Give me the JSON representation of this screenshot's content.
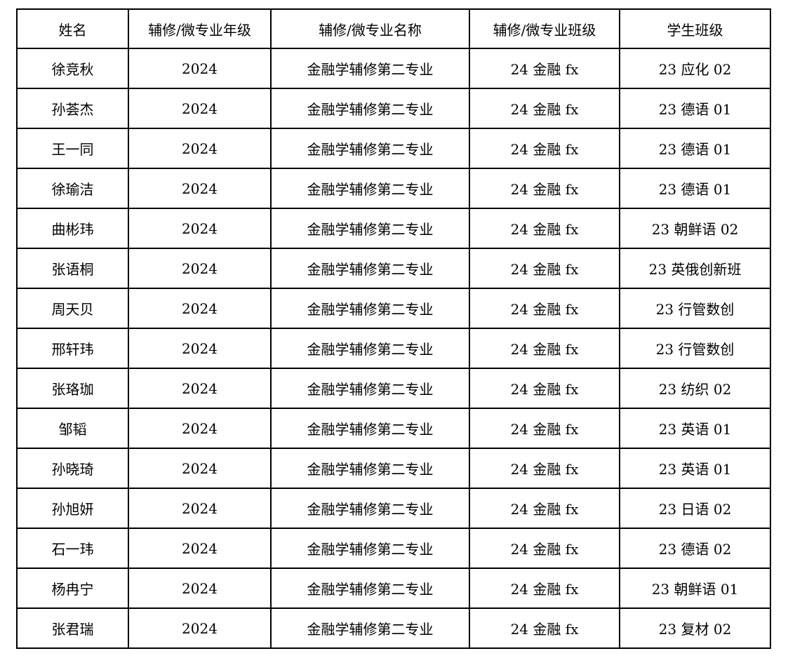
{
  "page": {
    "background_color": "#ffffff",
    "border_color": "#000000",
    "text_color": "#000000"
  },
  "table": {
    "columns": [
      {
        "key": "name",
        "label": "姓名"
      },
      {
        "key": "grade",
        "label": "辅修/微专业年级"
      },
      {
        "key": "program",
        "label": "辅修/微专业名称"
      },
      {
        "key": "minor_class",
        "label": "辅修/微专业班级"
      },
      {
        "key": "student_class",
        "label": "学生班级"
      }
    ],
    "rows": [
      {
        "name": "徐竞秋",
        "grade": "2024",
        "program": "金融学辅修第二专业",
        "minor_class": "24 金融 fx",
        "student_class": "23 应化 02"
      },
      {
        "name": "孙荟杰",
        "grade": "2024",
        "program": "金融学辅修第二专业",
        "minor_class": "24 金融 fx",
        "student_class": "23 德语 01"
      },
      {
        "name": "王一同",
        "grade": "2024",
        "program": "金融学辅修第二专业",
        "minor_class": "24 金融 fx",
        "student_class": "23 德语 01"
      },
      {
        "name": "徐瑜洁",
        "grade": "2024",
        "program": "金融学辅修第二专业",
        "minor_class": "24 金融 fx",
        "student_class": "23 德语 01"
      },
      {
        "name": "曲彬玮",
        "grade": "2024",
        "program": "金融学辅修第二专业",
        "minor_class": "24 金融 fx",
        "student_class": "23 朝鲜语 02"
      },
      {
        "name": "张语桐",
        "grade": "2024",
        "program": "金融学辅修第二专业",
        "minor_class": "24 金融 fx",
        "student_class": "23 英俄创新班"
      },
      {
        "name": "周天贝",
        "grade": "2024",
        "program": "金融学辅修第二专业",
        "minor_class": "24 金融 fx",
        "student_class": "23 行管数创"
      },
      {
        "name": "邢轩玮",
        "grade": "2024",
        "program": "金融学辅修第二专业",
        "minor_class": "24 金融 fx",
        "student_class": "23 行管数创"
      },
      {
        "name": "张珞珈",
        "grade": "2024",
        "program": "金融学辅修第二专业",
        "minor_class": "24 金融 fx",
        "student_class": "23 纺织 02"
      },
      {
        "name": "邹韬",
        "grade": "2024",
        "program": "金融学辅修第二专业",
        "minor_class": "24 金融 fx",
        "student_class": "23 英语 01"
      },
      {
        "name": "孙晓琦",
        "grade": "2024",
        "program": "金融学辅修第二专业",
        "minor_class": "24 金融 fx",
        "student_class": "23 英语 01"
      },
      {
        "name": "孙旭妍",
        "grade": "2024",
        "program": "金融学辅修第二专业",
        "minor_class": "24 金融 fx",
        "student_class": "23 日语 02"
      },
      {
        "name": "石一玮",
        "grade": "2024",
        "program": "金融学辅修第二专业",
        "minor_class": "24 金融 fx",
        "student_class": "23 德语 02"
      },
      {
        "name": "杨冉宁",
        "grade": "2024",
        "program": "金融学辅修第二专业",
        "minor_class": "24 金融 fx",
        "student_class": "23 朝鲜语 01"
      },
      {
        "name": "张君瑞",
        "grade": "2024",
        "program": "金融学辅修第二专业",
        "minor_class": "24 金融 fx",
        "student_class": "23 复材 02"
      }
    ]
  }
}
